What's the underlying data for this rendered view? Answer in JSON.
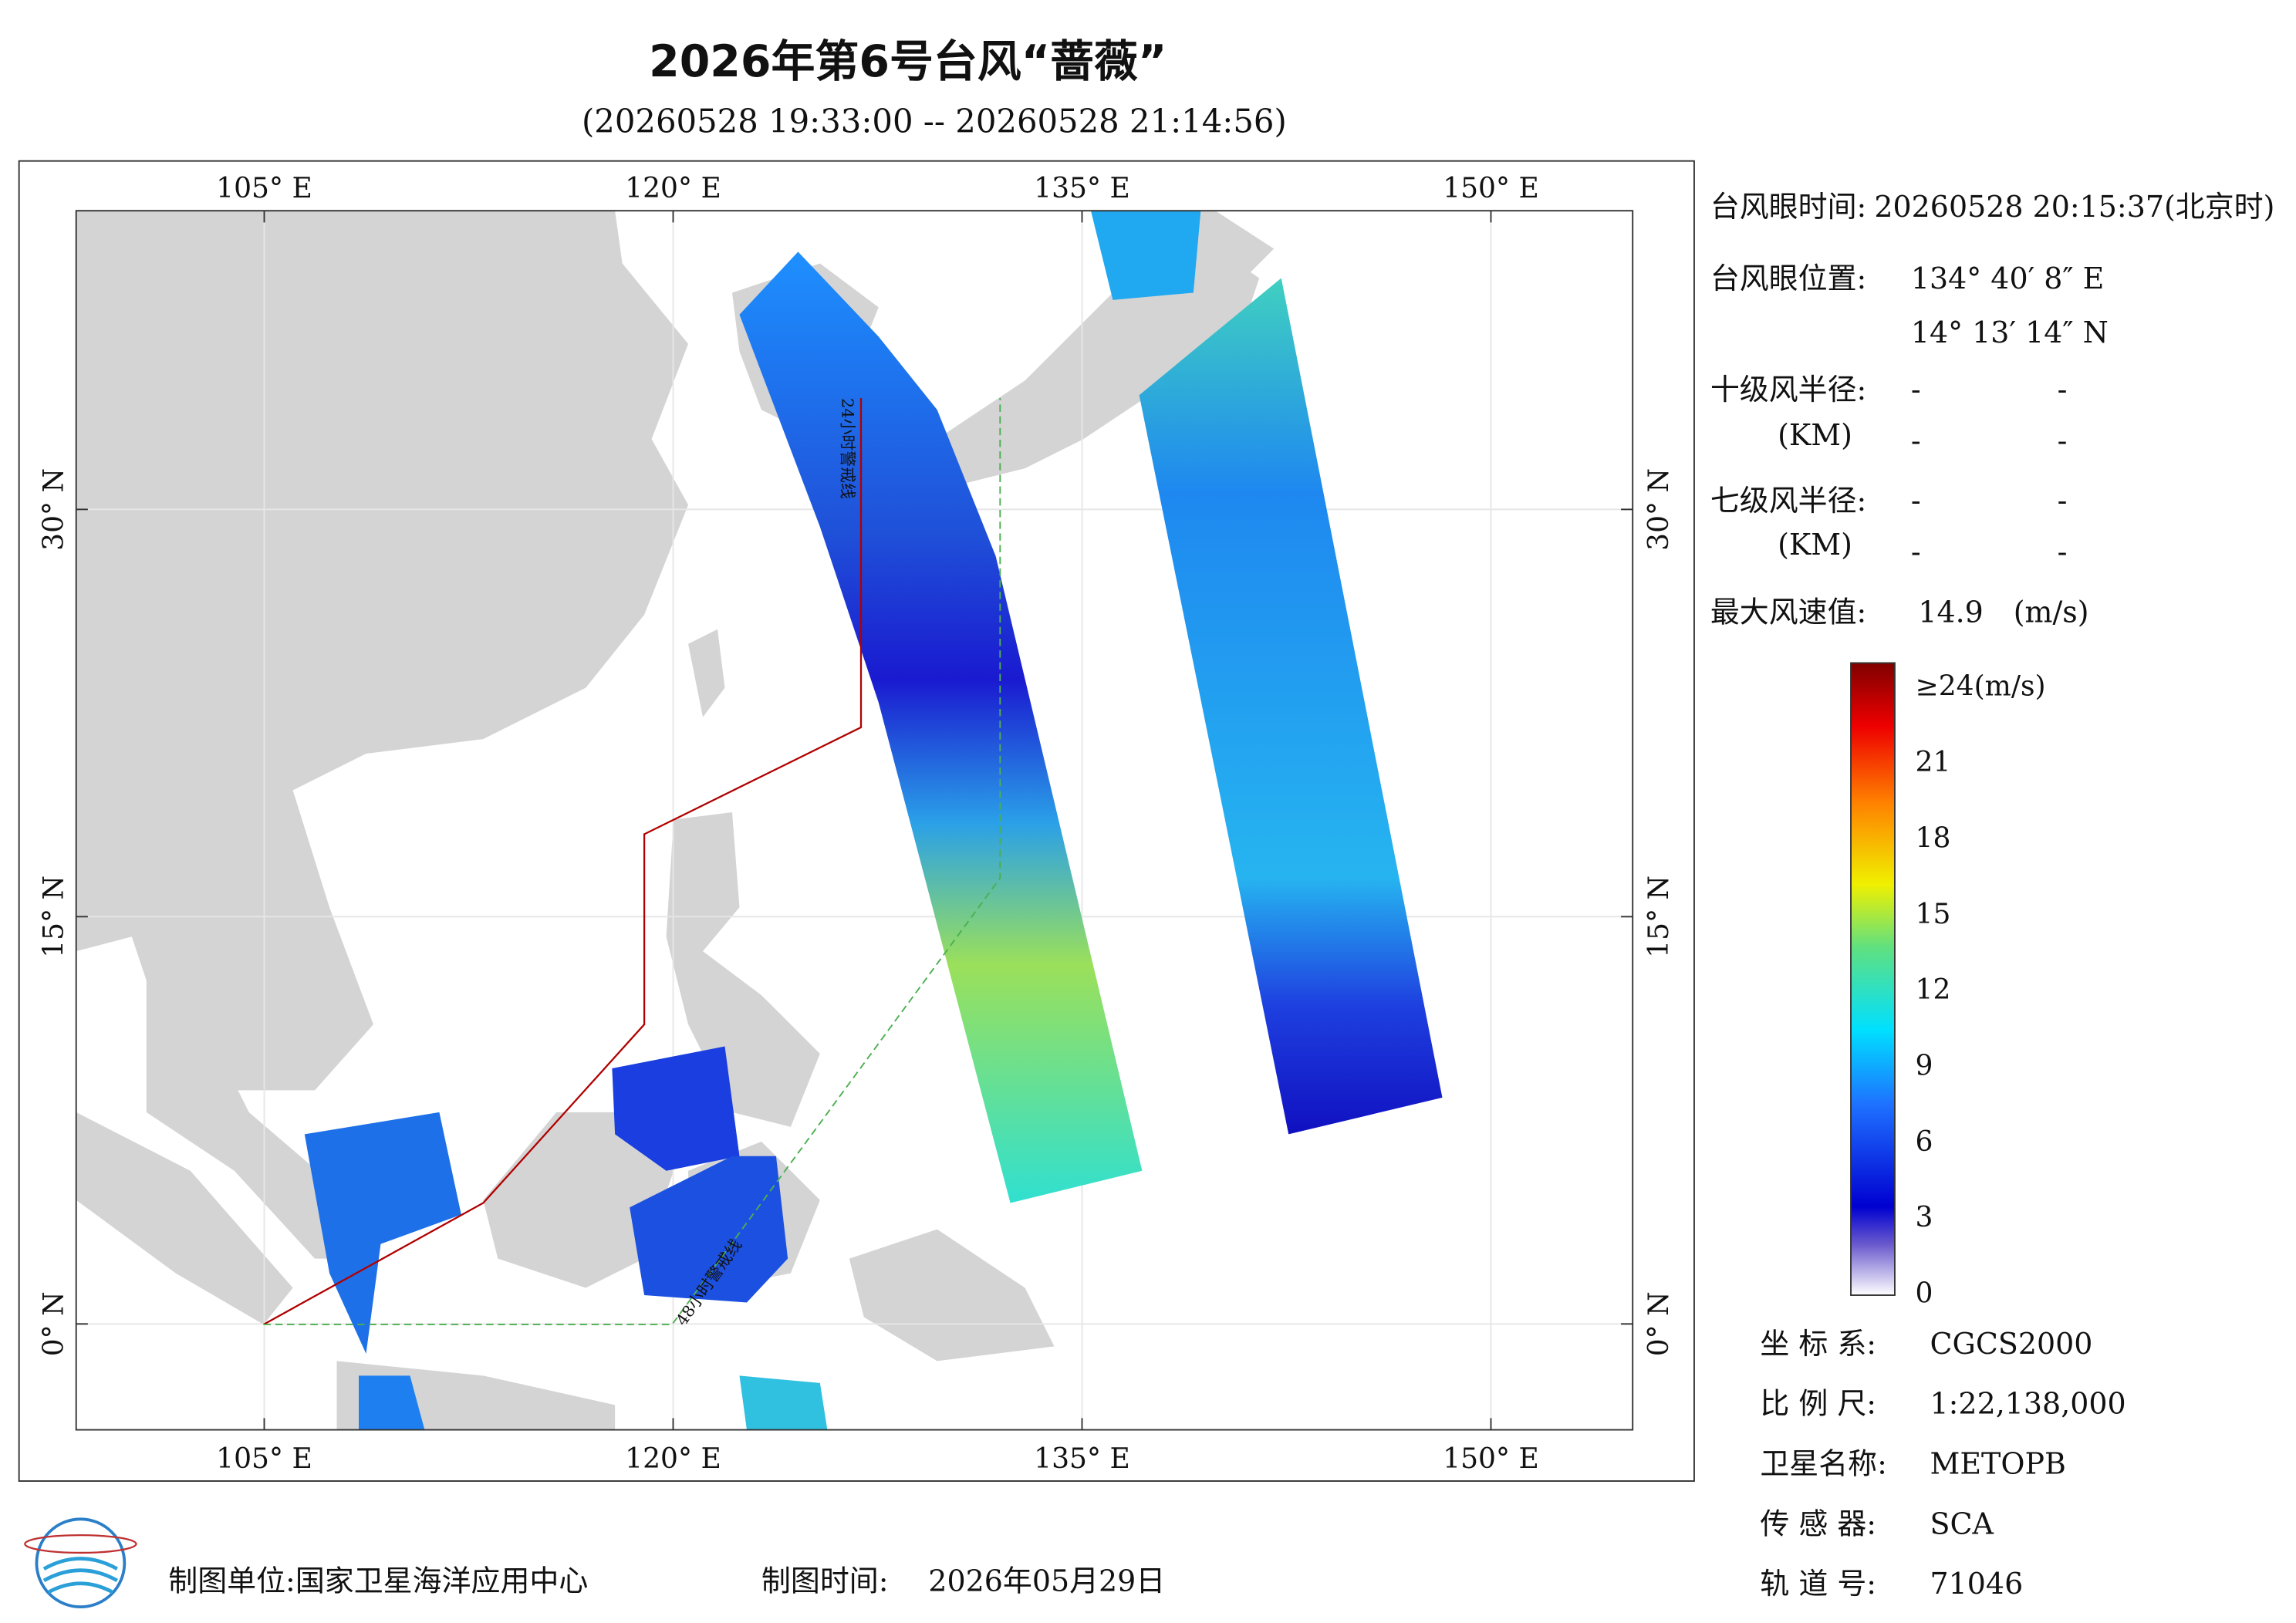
{
  "header": {
    "title": "2026年第6号台风“蔷薇”",
    "subtitle": "(20260528 19:33:00 -- 20260528 21:14:56)"
  },
  "map": {
    "lonlim": [
      98.1,
      155.2
    ],
    "latlim": [
      -3.9,
      41
    ],
    "lonticks": [
      {
        "value": 105,
        "label": "105° E"
      },
      {
        "value": 120,
        "label": "120° E"
      },
      {
        "value": 135,
        "label": "135° E"
      },
      {
        "value": 150,
        "label": "150° E"
      }
    ],
    "latticks": [
      {
        "value": 0,
        "label": "0° N"
      },
      {
        "value": 15,
        "label": "15° N"
      },
      {
        "value": 30,
        "label": "30° N"
      }
    ],
    "grid": true,
    "annotations": [
      "24小时警戒线",
      "48小时警戒线"
    ]
  },
  "info": {
    "eye_time_label": "台风眼时间:",
    "eye_time": "20260528 20:15:37(北京时)",
    "eye_position_label": "台风眼位置:",
    "eye_lon": "134° 40′ 8″ E",
    "eye_lat": "14° 13′ 14″ N",
    "r10_label": "十级风半径:",
    "r10_unit": "(KM)",
    "r10_values": [
      "-",
      "-",
      "-",
      "-"
    ],
    "r7_label": "七级风半径:",
    "r7_unit": "(KM)",
    "r7_values": [
      "-",
      "-",
      "-",
      "-"
    ],
    "max_wind_label": "最大风速值:",
    "max_wind": 14.9,
    "max_wind_unit": "(m/s)"
  },
  "colorbar": {
    "clim": [
      0,
      25
    ],
    "ticks": [
      0,
      3,
      6,
      9,
      12,
      15,
      18,
      21
    ],
    "top_tick": {
      "value": 24,
      "label": "≥24(m/s)"
    }
  },
  "metadata": {
    "rows": [
      [
        "坐 标 系:",
        "CGCS2000"
      ],
      [
        "比 例 尺:",
        "1:22,138,000"
      ],
      [
        "卫星名称:",
        "METOPB"
      ],
      [
        "传 感 器:",
        "SCA"
      ],
      [
        "轨 道 号:",
        "71046"
      ]
    ]
  },
  "footer": {
    "unit": "制图单位:国家卫星海洋应用中心",
    "time_label": "制图时间:",
    "time": "2026年05月29日"
  }
}
